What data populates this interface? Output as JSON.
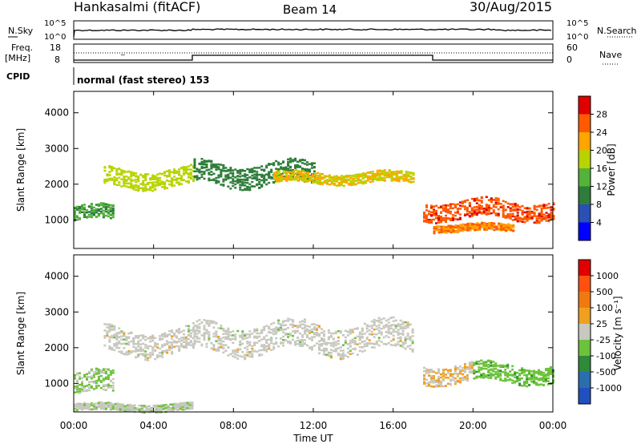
{
  "header": {
    "station": "Hankasalmi (fitACF)",
    "beam": "Beam 14",
    "date": "30/Aug/2015"
  },
  "top_panels": {
    "nsky_label": "N.Sky",
    "nsearch_label": "N.Search",
    "noise_ticks": [
      "10^5",
      "10^0"
    ],
    "freq_label_line1": "Freq.",
    "freq_label_line2": "[MHz]",
    "freq_ticks": [
      "18",
      "8"
    ],
    "nave_label": "Nave",
    "nave_ticks": [
      "60",
      "0"
    ],
    "cpid_label": "CPID",
    "cpid_text": "normal (fast stereo) 153"
  },
  "colors": {
    "power_scale": [
      "#0000ff",
      "#2a4fb5",
      "#2e7d3a",
      "#53b33a",
      "#b8d400",
      "#ffa500",
      "#ff5a00",
      "#e00000"
    ],
    "velocity_scale": [
      "#2050c0",
      "#2a6eb0",
      "#2f8a3a",
      "#6cc23a",
      "#c8c8c0",
      "#f0a020",
      "#f07a10",
      "#ff5010",
      "#e00000"
    ]
  },
  "chart_data": [
    {
      "type": "heatmap",
      "ylabel": "Slant Range [km]",
      "xlabel": "",
      "x_ticks": [
        "00:00",
        "04:00",
        "08:00",
        "12:00",
        "16:00",
        "20:00",
        "00:00"
      ],
      "y_ticks": [
        4000,
        3000,
        2000,
        1000
      ],
      "ylim": [
        200,
        4600
      ],
      "colorbar_label": "Power [dB]",
      "colorbar_ticks": [
        28,
        24,
        20,
        16,
        12,
        8,
        4
      ],
      "colorbar_range": [
        0,
        32
      ],
      "bands": [
        {
          "start": 0.0,
          "end": 2.0,
          "center": 1200,
          "width": 400,
          "value": 12
        },
        {
          "start": 1.5,
          "end": 6.0,
          "center": 2200,
          "width": 500,
          "value": 18
        },
        {
          "start": 6.0,
          "end": 12.0,
          "center": 2300,
          "width": 600,
          "value": 10
        },
        {
          "start": 10.0,
          "end": 17.0,
          "center": 2200,
          "width": 300,
          "value": 20
        },
        {
          "start": 17.5,
          "end": 24.0,
          "center": 1300,
          "width": 500,
          "value": 27
        },
        {
          "start": 18.0,
          "end": 22.0,
          "center": 800,
          "width": 200,
          "value": 24
        }
      ]
    },
    {
      "type": "heatmap",
      "ylabel": "Slant Range [km]",
      "xlabel": "Time UT",
      "x_ticks": [
        "00:00",
        "04:00",
        "08:00",
        "12:00",
        "16:00",
        "20:00",
        "00:00"
      ],
      "y_ticks": [
        4000,
        3000,
        2000,
        1000
      ],
      "ylim": [
        200,
        4600
      ],
      "colorbar_label": "Velocity [m s⁻¹]",
      "colorbar_ticks": [
        1000,
        500,
        100,
        25,
        -25,
        -100,
        -500,
        -1000
      ],
      "colorbar_range": [
        -1250,
        1250
      ],
      "bands": [
        {
          "start": 0.0,
          "end": 2.0,
          "center": 1000,
          "width": 600,
          "value": -150
        },
        {
          "start": 1.5,
          "end": 6.0,
          "center": 2200,
          "width": 700,
          "value": 0
        },
        {
          "start": 6.0,
          "end": 17.0,
          "center": 2300,
          "width": 800,
          "value": 0
        },
        {
          "start": 17.5,
          "end": 20.0,
          "center": 1300,
          "width": 500,
          "value": 150
        },
        {
          "start": 20.0,
          "end": 24.0,
          "center": 1300,
          "width": 500,
          "value": -300
        },
        {
          "start": 0.0,
          "end": 6.0,
          "center": 350,
          "width": 200,
          "value": -60
        }
      ]
    }
  ]
}
